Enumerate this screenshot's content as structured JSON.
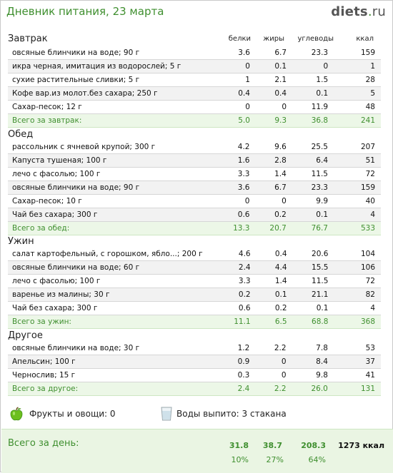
{
  "header": {
    "title": "Дневник питания, 23 марта",
    "logo_main": "diets",
    "logo_dot": ".",
    "logo_tld": "ru"
  },
  "columns": {
    "proteins": "белки",
    "fats": "жиры",
    "carbs": "углеводы",
    "kcal": "ккал"
  },
  "meals": [
    {
      "title": "Завтрак",
      "rows": [
        [
          "овсяные блинчики на воде; 90 г",
          "3.6",
          "6.7",
          "23.3",
          "159"
        ],
        [
          "икра черная, имитация из водорослей; 5 г",
          "0",
          "0.1",
          "0",
          "1"
        ],
        [
          "сухие растительные сливки; 5 г",
          "1",
          "2.1",
          "1.5",
          "28"
        ],
        [
          "Кофе вар.из молот.без сахара; 250 г",
          "0.4",
          "0.4",
          "0.1",
          "5"
        ],
        [
          "Сахар-песок; 12 г",
          "0",
          "0",
          "11.9",
          "48"
        ]
      ],
      "total": [
        "Всего за завтрак:",
        "5.0",
        "9.3",
        "36.8",
        "241"
      ]
    },
    {
      "title": "Обед",
      "rows": [
        [
          "рассольник с ячневой крупой; 300 г",
          "4.2",
          "9.6",
          "25.5",
          "207"
        ],
        [
          "Капуста тушеная; 100 г",
          "1.6",
          "2.8",
          "6.4",
          "51"
        ],
        [
          "лечо с фасолью; 100 г",
          "3.3",
          "1.4",
          "11.5",
          "72"
        ],
        [
          "овсяные блинчики на воде; 90 г",
          "3.6",
          "6.7",
          "23.3",
          "159"
        ],
        [
          "Сахар-песок; 10 г",
          "0",
          "0",
          "9.9",
          "40"
        ],
        [
          "Чай без сахара; 300 г",
          "0.6",
          "0.2",
          "0.1",
          "4"
        ]
      ],
      "total": [
        "Всего за обед:",
        "13.3",
        "20.7",
        "76.7",
        "533"
      ]
    },
    {
      "title": "Ужин",
      "rows": [
        [
          "салат картофельный, с горошком, ябло...; 200 г",
          "4.6",
          "0.4",
          "20.6",
          "104"
        ],
        [
          "овсяные блинчики на воде; 60 г",
          "2.4",
          "4.4",
          "15.5",
          "106"
        ],
        [
          "лечо с фасолью; 100 г",
          "3.3",
          "1.4",
          "11.5",
          "72"
        ],
        [
          "варенье из малины; 30 г",
          "0.2",
          "0.1",
          "21.1",
          "82"
        ],
        [
          "Чай без сахара; 300 г",
          "0.6",
          "0.2",
          "0.1",
          "4"
        ]
      ],
      "total": [
        "Всего за ужин:",
        "11.1",
        "6.5",
        "68.8",
        "368"
      ]
    },
    {
      "title": "Другое",
      "rows": [
        [
          "овсяные блинчики на воде; 30 г",
          "1.2",
          "2.2",
          "7.8",
          "53"
        ],
        [
          "Апельсин; 100 г",
          "0.9",
          "0",
          "8.4",
          "37"
        ],
        [
          "Чернослив; 15 г",
          "0.3",
          "0",
          "9.8",
          "41"
        ]
      ],
      "total": [
        "Всего за другое:",
        "2.4",
        "2.2",
        "26.0",
        "131"
      ]
    }
  ],
  "extras": {
    "fruits": "Фрукты и овощи: 0",
    "water": "Воды выпито: 3 стакана"
  },
  "day_total": {
    "label": "Всего за день:",
    "proteins": "31.8",
    "fats": "38.7",
    "carbs": "208.3",
    "kcal": "1273 ккал",
    "proteins_pct": "10%",
    "fats_pct": "27%",
    "carbs_pct": "64%"
  },
  "colors": {
    "accent": "#3f8f2f",
    "total_bg": "#ecf7e7",
    "alt_row": "#f2f2f2"
  }
}
